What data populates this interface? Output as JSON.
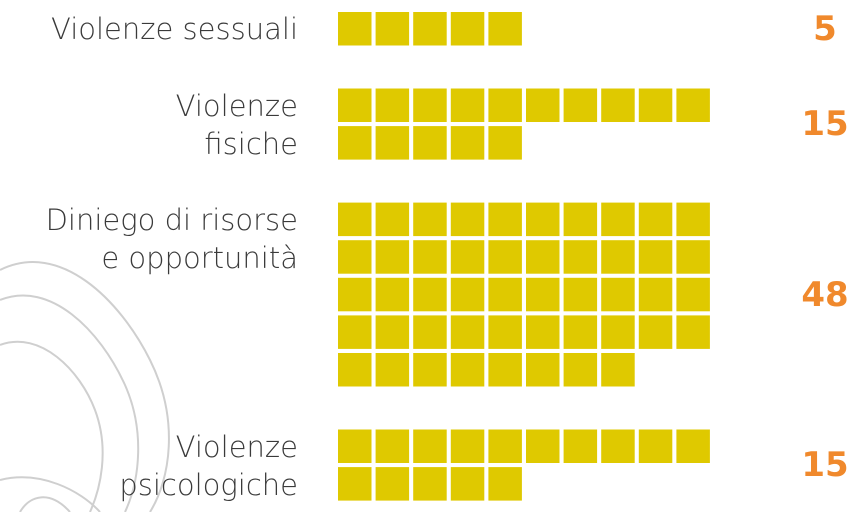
{
  "chart_data": {
    "type": "waffle",
    "categories": [
      "Violenze sessuali",
      "Violenze\nfisiche",
      "Diniego di risorse\ne opportunità",
      "Violenze\npsicologiche"
    ],
    "values": [
      5,
      15,
      48,
      15
    ],
    "color": "#dfc900",
    "label_color": "#f0892c",
    "per_row": 10
  }
}
